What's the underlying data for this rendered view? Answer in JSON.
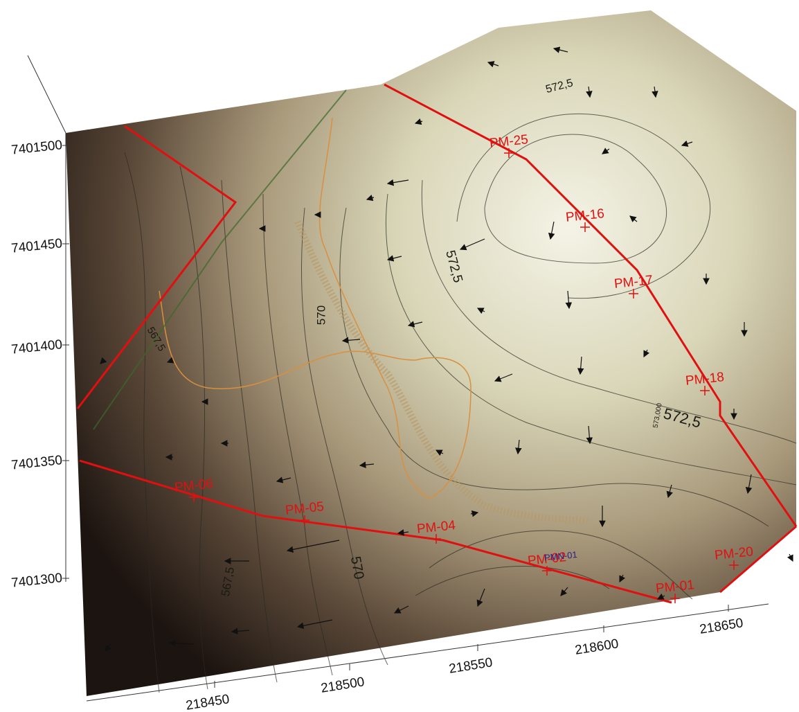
{
  "axes": {
    "x_ticks": [
      218450,
      218500,
      218550,
      218600,
      218650
    ],
    "y_ticks": [
      7401500,
      7401450,
      7401400,
      7401350,
      7401300
    ]
  },
  "contour_labels": [
    "572,5",
    "572,5",
    "572,5",
    "570",
    "570",
    "567,5",
    "567,5",
    "573,000"
  ],
  "wells": [
    "PM-25",
    "PM-16",
    "PM-17",
    "PM-18",
    "PM-20",
    "PM-01",
    "PM-02",
    "PM-04",
    "PM-05",
    "PM-06"
  ],
  "other_labels": [
    "PMN-01"
  ]
}
